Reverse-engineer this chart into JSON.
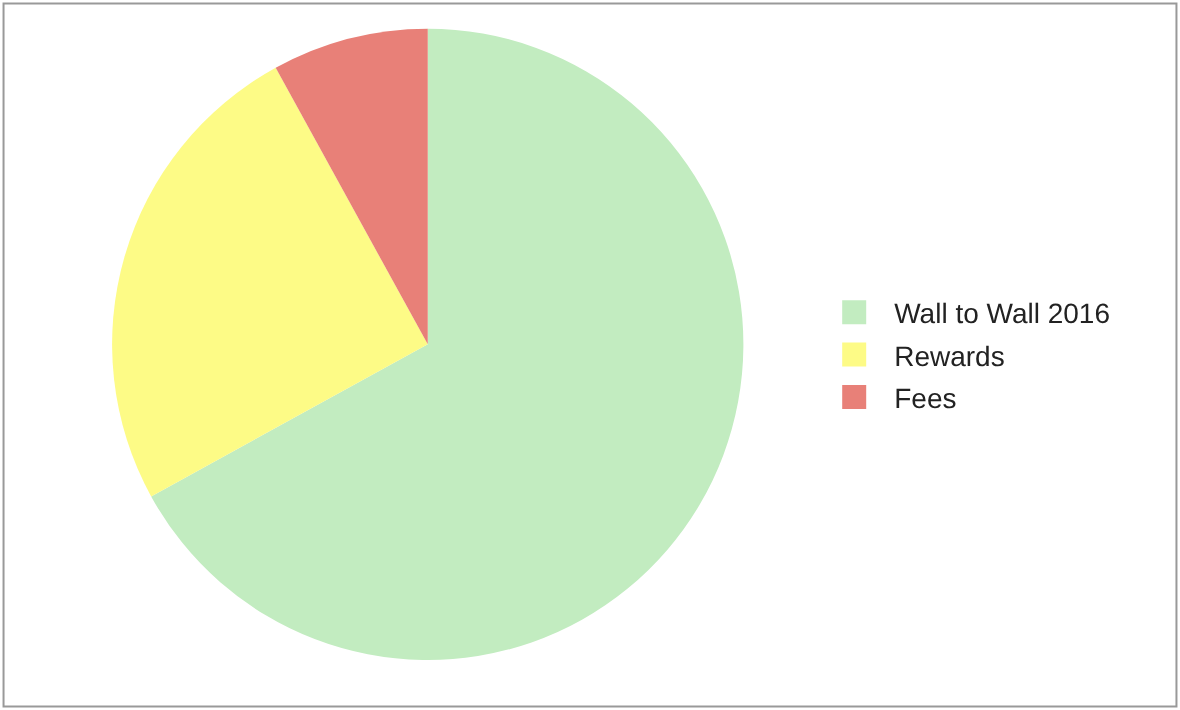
{
  "chart_data": {
    "type": "pie",
    "categories": [
      "Wall to Wall 2016",
      "Rewards",
      "Fees"
    ],
    "values": [
      67,
      25,
      8
    ],
    "colors": [
      "#c2ecc0",
      "#fdfb86",
      "#e88078"
    ],
    "legend": "right"
  }
}
